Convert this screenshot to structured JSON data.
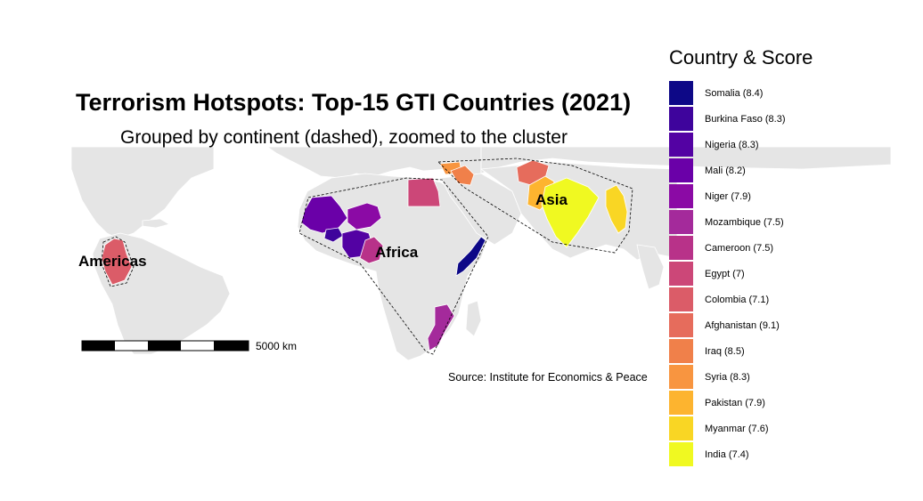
{
  "title": "Terrorism Hotspots: Top-15 GTI Countries (2021)",
  "subtitle": "Grouped by continent (dashed), zoomed to the cluster",
  "source": "Source: Institute for Economics & Peace",
  "scale_bar": {
    "label": "5000 km"
  },
  "regions": [
    {
      "name": "Americas"
    },
    {
      "name": "Africa"
    },
    {
      "name": "Asia"
    }
  ],
  "legend": {
    "title": "Country & Score",
    "items": [
      {
        "label": "Somalia (8.4)",
        "color": "#0d0887"
      },
      {
        "label": "Burkina Faso (8.3)",
        "color": "#3e049c"
      },
      {
        "label": "Nigeria (8.3)",
        "color": "#5302a3"
      },
      {
        "label": "Mali (8.2)",
        "color": "#6a00a8"
      },
      {
        "label": "Niger (7.9)",
        "color": "#8b0aa5"
      },
      {
        "label": "Mozambique (7.5)",
        "color": "#a42a9b"
      },
      {
        "label": "Cameroon (7.5)",
        "color": "#b83289"
      },
      {
        "label": "Egypt (7)",
        "color": "#cc4778"
      },
      {
        "label": "Colombia (7.1)",
        "color": "#db5c68"
      },
      {
        "label": "Afghanistan (9.1)",
        "color": "#e66c5c"
      },
      {
        "label": "Iraq (8.5)",
        "color": "#f0804a"
      },
      {
        "label": "Syria (8.3)",
        "color": "#f89540"
      },
      {
        "label": "Pakistan (7.9)",
        "color": "#fdb42f"
      },
      {
        "label": "Myanmar (7.6)",
        "color": "#f9d624"
      },
      {
        "label": "India (7.4)",
        "color": "#f0f921"
      }
    ]
  },
  "colors": {
    "land": "#e5e5e5",
    "border": "#ffffff",
    "hull": "#000000"
  }
}
